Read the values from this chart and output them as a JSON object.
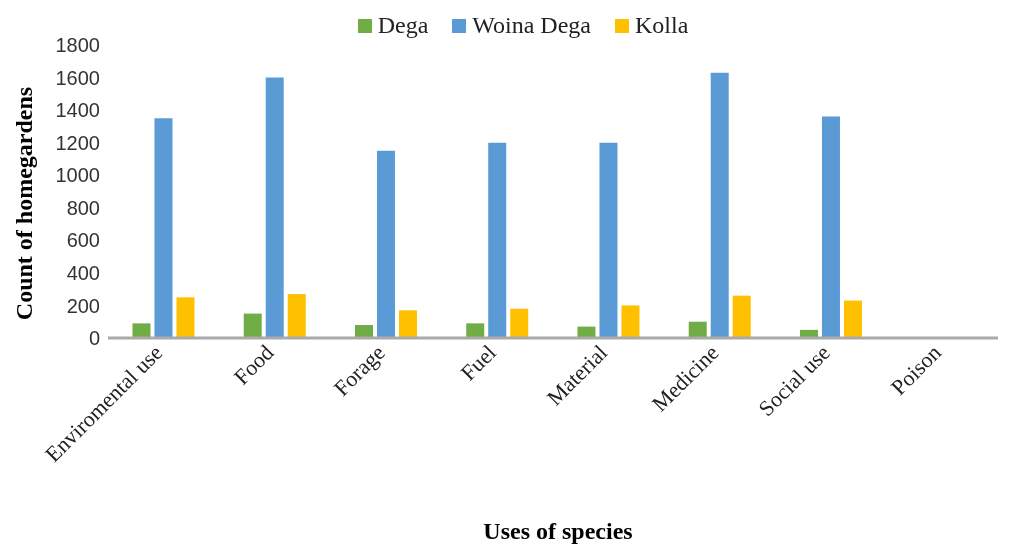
{
  "chart_data": {
    "type": "bar",
    "xlabel": "Uses of species",
    "ylabel": "Count of homegardens",
    "categories": [
      "Enviromental use",
      "Food",
      "Forage",
      "Fuel",
      "Material",
      "Medicine",
      "Social use",
      "Poison"
    ],
    "series": [
      {
        "name": "Dega",
        "color": "#70ad47",
        "values": [
          90,
          150,
          80,
          90,
          70,
          100,
          50,
          0
        ]
      },
      {
        "name": "Woina Dega",
        "color": "#5b9bd5",
        "values": [
          1350,
          1600,
          1150,
          1200,
          1200,
          1630,
          1360,
          0
        ]
      },
      {
        "name": "Kolla",
        "color": "#ffc000",
        "values": [
          250,
          270,
          170,
          180,
          200,
          260,
          230,
          0
        ]
      }
    ],
    "ylim": [
      0,
      1800
    ],
    "yticks": [
      0,
      200,
      400,
      600,
      800,
      1000,
      1200,
      1400,
      1600,
      1800
    ],
    "grid": false,
    "legend": "top"
  }
}
